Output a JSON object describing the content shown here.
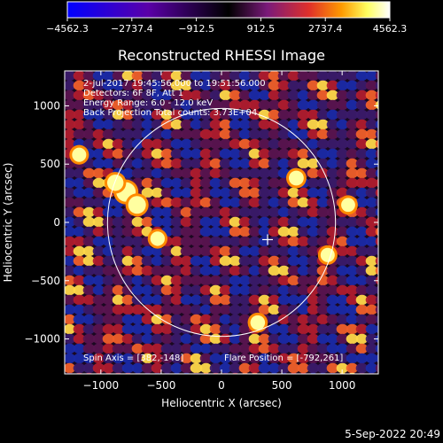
{
  "chart_data": {
    "type": "heatmap",
    "title": "Reconstructed RHESSI Image",
    "xlabel": "Heliocentric X (arcsec)",
    "ylabel": "Heliocentric Y (arcsec)",
    "xlim": [
      -1300,
      1300
    ],
    "ylim": [
      -1300,
      1300
    ],
    "x_ticks": [
      -1000,
      -500,
      0,
      500,
      1000
    ],
    "y_ticks": [
      -1000,
      -500,
      0,
      500,
      1000
    ],
    "x_tick_labels": [
      "−1000",
      "−500",
      "0",
      "500",
      "1000"
    ],
    "y_tick_labels": [
      "−1000",
      "−500",
      "0",
      "500",
      "1000"
    ],
    "colorbar": {
      "min": -4562.3,
      "max": 4562.3,
      "tick_labels": [
        "−4562.3",
        "−2737.4",
        "−912.5",
        "912.5",
        "2737.4",
        "4562.3"
      ],
      "colors": [
        "#0000ff",
        "#5a00a8",
        "#000000",
        "#7a1a7a",
        "#e0302a",
        "#ff9a00",
        "#ffff60",
        "#ffffff"
      ]
    },
    "annotations": [
      "2-Jul-2017 19:45:56.000 to 19:51:56.000",
      "Detectors: 6F 8F, Att 1",
      "Energy Range: 6.0 - 12.0 keV",
      "Back Projection    Total counts: 3.73E+04"
    ],
    "footer_left": "Spin Axis = [382,-148]",
    "footer_right": "Flare Position = [-792,261]",
    "solar_disk_radius_arcsec": 945,
    "spin_axis": [
      382,
      -148
    ],
    "hotspots": [
      {
        "x": -792,
        "y": 261,
        "value": 4562
      },
      {
        "x": -700,
        "y": 150,
        "value": 3800
      },
      {
        "x": -880,
        "y": 340,
        "value": 3200
      },
      {
        "x": 620,
        "y": 380,
        "value": 2600
      },
      {
        "x": 300,
        "y": -860,
        "value": 2500
      },
      {
        "x": 880,
        "y": -280,
        "value": 2300
      },
      {
        "x": -530,
        "y": -140,
        "value": 2400
      },
      {
        "x": 1050,
        "y": 150,
        "value": 2200
      },
      {
        "x": -1180,
        "y": 580,
        "value": 2300
      }
    ],
    "date_stamp": "5-Sep-2022 20:49"
  }
}
